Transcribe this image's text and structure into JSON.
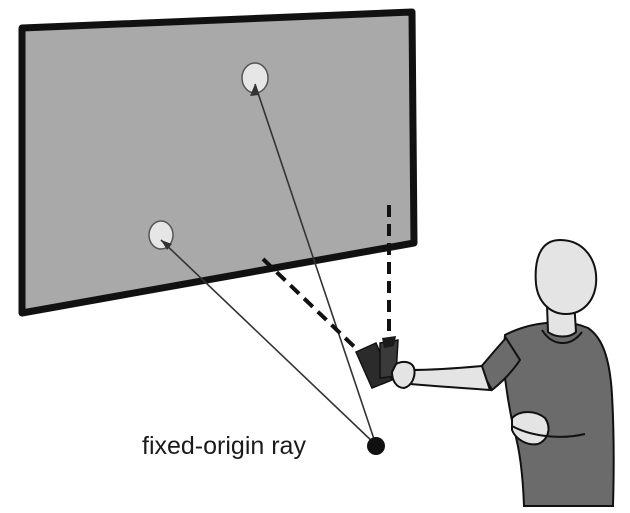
{
  "caption": {
    "text": "fixed-origin ray"
  },
  "colors": {
    "screen_fill": "#a9a9a9",
    "screen_border": "#111111",
    "target": "#e6e6e6",
    "shirt": "#6b6b6b",
    "skin": "#e4e4e4",
    "ray": "#333333",
    "origin_dot": "#111111"
  }
}
